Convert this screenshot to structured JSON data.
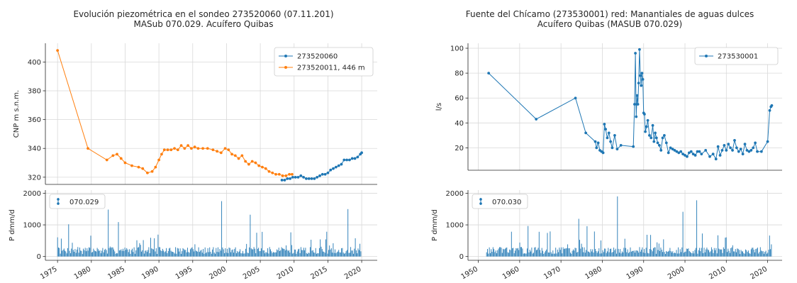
{
  "colors": {
    "blue": "#1f77b4",
    "orange": "#ff7f0e",
    "grid": "#d9d9d9",
    "axis": "#262626"
  },
  "chart_data": [
    {
      "id": "left",
      "type": "line",
      "title_line1": "Evolución piezométrica en el sondeo 273520060 (07.11.201)",
      "title_line2": "MASub 070.029. Acuífero Quibas",
      "top": {
        "ylabel": "CNP m s.n.m.",
        "xlim": [
          1973.2,
          2022.3
        ],
        "ylim": [
          315,
          413
        ],
        "yticks": [
          320,
          340,
          360,
          380,
          400
        ],
        "grid": true,
        "legend_position": "top-right",
        "series": [
          {
            "name": "273520060",
            "color": "#1f77b4",
            "x": [
              2008.2,
              2008.6,
              2009.0,
              2009.4,
              2009.8,
              2010.2,
              2010.6,
              2011.0,
              2011.4,
              2011.8,
              2012.2,
              2012.6,
              2013.0,
              2013.4,
              2013.8,
              2014.2,
              2014.6,
              2015.0,
              2015.4,
              2015.8,
              2016.2,
              2016.6,
              2017.0,
              2017.4,
              2017.8,
              2018.2,
              2018.6,
              2019.0,
              2019.4,
              2019.8,
              2020.0
            ],
            "y": [
              318,
              318,
              319,
              319,
              320,
              320,
              320,
              321,
              320,
              319,
              319,
              319,
              319,
              320,
              321,
              322,
              322,
              323,
              325,
              326,
              327,
              328,
              329,
              332,
              332,
              332,
              333,
              333,
              334,
              336,
              337
            ]
          },
          {
            "name": "273520011, 446 m",
            "color": "#ff7f0e",
            "x": [
              1975.0,
              1979.5,
              1982.3,
              1983.2,
              1983.8,
              1984.4,
              1985.0,
              1986.0,
              1987.0,
              1987.6,
              1988.3,
              1989.0,
              1989.5,
              1990.0,
              1990.4,
              1990.8,
              1991.3,
              1991.8,
              1992.3,
              1992.8,
              1993.3,
              1993.8,
              1994.3,
              1994.8,
              1995.3,
              1995.8,
              1996.5,
              1997.2,
              1998.0,
              1998.6,
              1999.2,
              1999.8,
              2000.3,
              2000.8,
              2001.3,
              2001.8,
              2002.3,
              2002.8,
              2003.3,
              2003.8,
              2004.3,
              2004.8,
              2005.3,
              2005.8,
              2006.3,
              2006.8,
              2007.3,
              2007.8,
              2008.3,
              2008.8,
              2009.3,
              2009.7
            ],
            "y": [
              408,
              340,
              332,
              335,
              336,
              333,
              330,
              328,
              327,
              326,
              323,
              324,
              327,
              332,
              336,
              339,
              339,
              339,
              340,
              339,
              342,
              340,
              342,
              340,
              341,
              340,
              340,
              340,
              339,
              338,
              337,
              340,
              339,
              336,
              335,
              333,
              335,
              331,
              329,
              331,
              330,
              328,
              327,
              326,
              324,
              323,
              322,
              322,
              321,
              321,
              322,
              322
            ]
          }
        ]
      },
      "bottom": {
        "ylabel": "P dmm/d",
        "ylim": [
          -120,
          2100
        ],
        "yticks": [
          0,
          1000,
          2000
        ],
        "legend": "070.029",
        "color": "#1f77b4",
        "x_start": 1975,
        "x_end": 2020,
        "grid": true
      },
      "xticks": [
        1975,
        1980,
        1985,
        1990,
        1995,
        2000,
        2005,
        2010,
        2015,
        2020
      ]
    },
    {
      "id": "right",
      "type": "line",
      "title_line1": "Fuente del Chícamo (273530001) red: Manantiales de aguas dulces",
      "title_line2": "Acuífero Quibas (MASUB 070.029)",
      "top": {
        "ylabel": "l/s",
        "xlim": [
          1947.5,
          2023.5
        ],
        "ylim": [
          2,
          104
        ],
        "yticks": [
          20,
          40,
          60,
          80,
          100
        ],
        "grid": true,
        "legend_position": "top-right",
        "series": [
          {
            "name": "273530001",
            "color": "#1f77b4",
            "x": [
              1952.5,
              1964.0,
              1973.5,
              1976.0,
              1978.3,
              1978.6,
              1979.0,
              1979.4,
              1979.8,
              1980.2,
              1980.5,
              1980.8,
              1981.2,
              1981.6,
              1982.0,
              1982.4,
              1983.0,
              1983.6,
              1984.5,
              1987.5,
              1987.8,
              1988.0,
              1988.2,
              1988.4,
              1988.6,
              1988.8,
              1989.0,
              1989.2,
              1989.4,
              1989.6,
              1989.8,
              1990.0,
              1990.2,
              1990.4,
              1990.7,
              1991.0,
              1991.4,
              1991.8,
              1992.2,
              1992.5,
              1992.8,
              1993.1,
              1993.4,
              1993.8,
              1994.2,
              1994.6,
              1995.0,
              1995.5,
              1996.0,
              1996.5,
              1997.0,
              1997.5,
              1998.0,
              1998.5,
              1999.0,
              1999.5,
              2000.0,
              2000.5,
              2001.0,
              2001.5,
              2002.0,
              2002.5,
              2003.0,
              2003.5,
              2004.0,
              2005.0,
              2006.0,
              2006.8,
              2007.5,
              2008.0,
              2008.5,
              2009.0,
              2009.5,
              2010.0,
              2010.5,
              2011.0,
              2011.5,
              2012.0,
              2012.5,
              2013.0,
              2013.5,
              2014.0,
              2014.5,
              2015.0,
              2015.5,
              2016.0,
              2016.5,
              2017.0,
              2017.5,
              2018.5,
              2020.0,
              2020.5,
              2020.8,
              2021.0
            ],
            "y": [
              80,
              43,
              60,
              32,
              25,
              20,
              24,
              18,
              17,
              16,
              39,
              35,
              28,
              32,
              25,
              20,
              30,
              19,
              22,
              21,
              55,
              96,
              45,
              62,
              55,
              72,
              99,
              78,
              70,
              80,
              75,
              48,
              47,
              33,
              37,
              42,
              30,
              28,
              38,
              25,
              32,
              28,
              24,
              22,
              18,
              28,
              30,
              24,
              16,
              20,
              19,
              18,
              17,
              16,
              17,
              15,
              14,
              13,
              16,
              17,
              15,
              14,
              17,
              17,
              15,
              18,
              13,
              15,
              11,
              21,
              14,
              18,
              22,
              18,
              23,
              20,
              18,
              26,
              20,
              17,
              19,
              15,
              23,
              18,
              17,
              18,
              20,
              24,
              17,
              17,
              25,
              50,
              53,
              54
            ]
          }
        ]
      },
      "bottom": {
        "ylabel": "P dmm/d",
        "ylim": [
          -120,
          2100
        ],
        "yticks": [
          0,
          1000,
          2000
        ],
        "legend": "070.030",
        "color": "#1f77b4",
        "x_start": 1952,
        "x_end": 2021,
        "grid": true
      },
      "xticks": [
        1950,
        1960,
        1970,
        1980,
        1990,
        2000,
        2010,
        2020
      ]
    }
  ]
}
